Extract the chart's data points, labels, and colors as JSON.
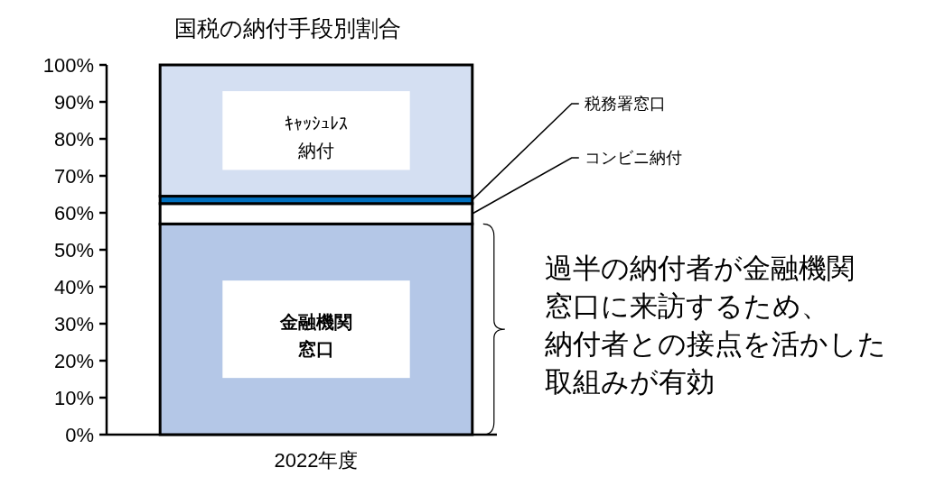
{
  "chart_data": {
    "type": "bar",
    "stacked": true,
    "title": "国税の納付手段別割合",
    "categories": [
      "2022年度"
    ],
    "ylim": [
      0,
      100
    ],
    "yticks": [
      {
        "value": 0,
        "label": "0%"
      },
      {
        "value": 10,
        "label": "10%"
      },
      {
        "value": 20,
        "label": "20%"
      },
      {
        "value": 30,
        "label": "30%"
      },
      {
        "value": 40,
        "label": "40%"
      },
      {
        "value": 50,
        "label": "50%"
      },
      {
        "value": 60,
        "label": "60%"
      },
      {
        "value": 70,
        "label": "70%"
      },
      {
        "value": 80,
        "label": "80%"
      },
      {
        "value": 90,
        "label": "90%"
      },
      {
        "value": 100,
        "label": "100%"
      }
    ],
    "series": [
      {
        "name": "金融機関窓口",
        "color": "#b4c7e7",
        "values": [
          57
        ]
      },
      {
        "name": "コンビニ納付",
        "color": "#ffffff",
        "values": [
          5.5
        ]
      },
      {
        "name": "税務署窓口",
        "color": "#0070c0",
        "values": [
          2
        ]
      },
      {
        "name": "ｷｬｯｼｭﾚｽ納付",
        "color": "#d4dff2",
        "values": [
          35.5
        ]
      }
    ],
    "annotations": [
      "過半の納付者が金融機関",
      "窓口に来訪するため、",
      "納付者との接点を活かした",
      "取組みが有効"
    ],
    "grid": false
  }
}
